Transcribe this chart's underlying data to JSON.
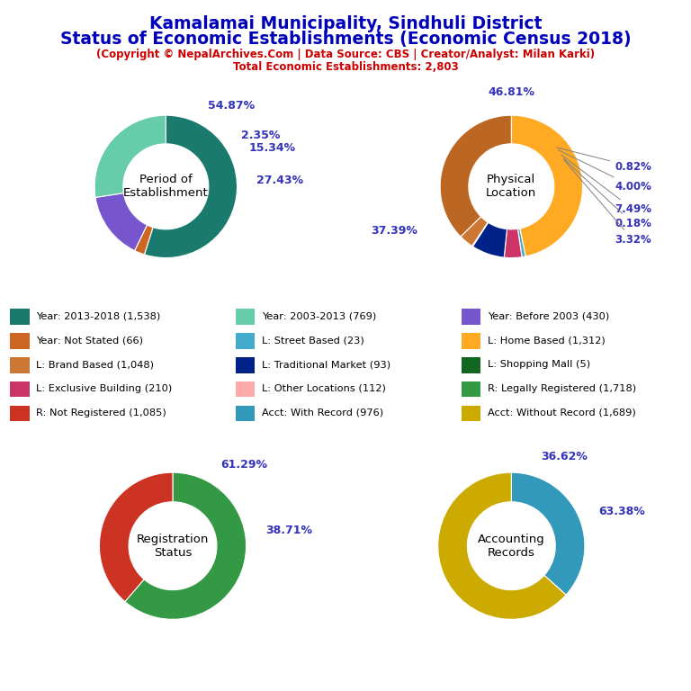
{
  "title_line1": "Kamalamai Municipality, Sindhuli District",
  "title_line2": "Status of Economic Establishments (Economic Census 2018)",
  "subtitle_line1": "(Copyright © NepalArchives.Com | Data Source: CBS | Creator/Analyst: Milan Karki)",
  "subtitle_line2": "Total Economic Establishments: 2,803",
  "title_color": "#0000bb",
  "subtitle_color": "#cc0000",
  "bg_color": "#ffffff",
  "pct_label_color": "#3333bb",
  "chart1": {
    "title": "Period of\nEstablishment",
    "values": [
      54.87,
      2.35,
      15.34,
      27.43
    ],
    "colors": [
      "#1a7a6e",
      "#cc6622",
      "#7755cc",
      "#66ccaa"
    ],
    "labels": [
      "54.87%",
      "2.35%",
      "15.34%",
      "27.43%"
    ]
  },
  "chart2": {
    "title": "Physical\nLocation",
    "values": [
      46.81,
      0.82,
      4.0,
      7.49,
      0.18,
      3.32,
      37.39
    ],
    "colors": [
      "#ffaa22",
      "#44aacc",
      "#cc3366",
      "#002288",
      "#116622",
      "#cc7733",
      "#bb6622"
    ],
    "labels": [
      "46.81%",
      "0.82%",
      "4.00%",
      "7.49%",
      "0.18%",
      "3.32%",
      "37.39%"
    ]
  },
  "chart3": {
    "title": "Registration\nStatus",
    "values": [
      61.29,
      38.71
    ],
    "colors": [
      "#339944",
      "#cc3322"
    ],
    "labels": [
      "61.29%",
      "38.71%"
    ]
  },
  "chart4": {
    "title": "Accounting\nRecords",
    "values": [
      36.62,
      63.38
    ],
    "colors": [
      "#3399bb",
      "#ccaa00"
    ],
    "labels": [
      "36.62%",
      "63.38%"
    ]
  },
  "legend_items": [
    {
      "label": "Year: 2013-2018 (1,538)",
      "color": "#1a7a6e"
    },
    {
      "label": "Year: Not Stated (66)",
      "color": "#cc6622"
    },
    {
      "label": "L: Brand Based (1,048)",
      "color": "#cc7733"
    },
    {
      "label": "L: Exclusive Building (210)",
      "color": "#cc3366"
    },
    {
      "label": "R: Not Registered (1,085)",
      "color": "#cc3322"
    },
    {
      "label": "Year: 2003-2013 (769)",
      "color": "#66ccaa"
    },
    {
      "label": "L: Street Based (23)",
      "color": "#44aacc"
    },
    {
      "label": "L: Traditional Market (93)",
      "color": "#002288"
    },
    {
      "label": "L: Other Locations (112)",
      "color": "#ffaaaa"
    },
    {
      "label": "Acct: With Record (976)",
      "color": "#3399bb"
    },
    {
      "label": "Year: Before 2003 (430)",
      "color": "#7755cc"
    },
    {
      "label": "L: Home Based (1,312)",
      "color": "#ffaa22"
    },
    {
      "label": "L: Shopping Mall (5)",
      "color": "#116622"
    },
    {
      "label": "R: Legally Registered (1,718)",
      "color": "#339944"
    },
    {
      "label": "Acct: Without Record (1,689)",
      "color": "#ccaa00"
    }
  ]
}
